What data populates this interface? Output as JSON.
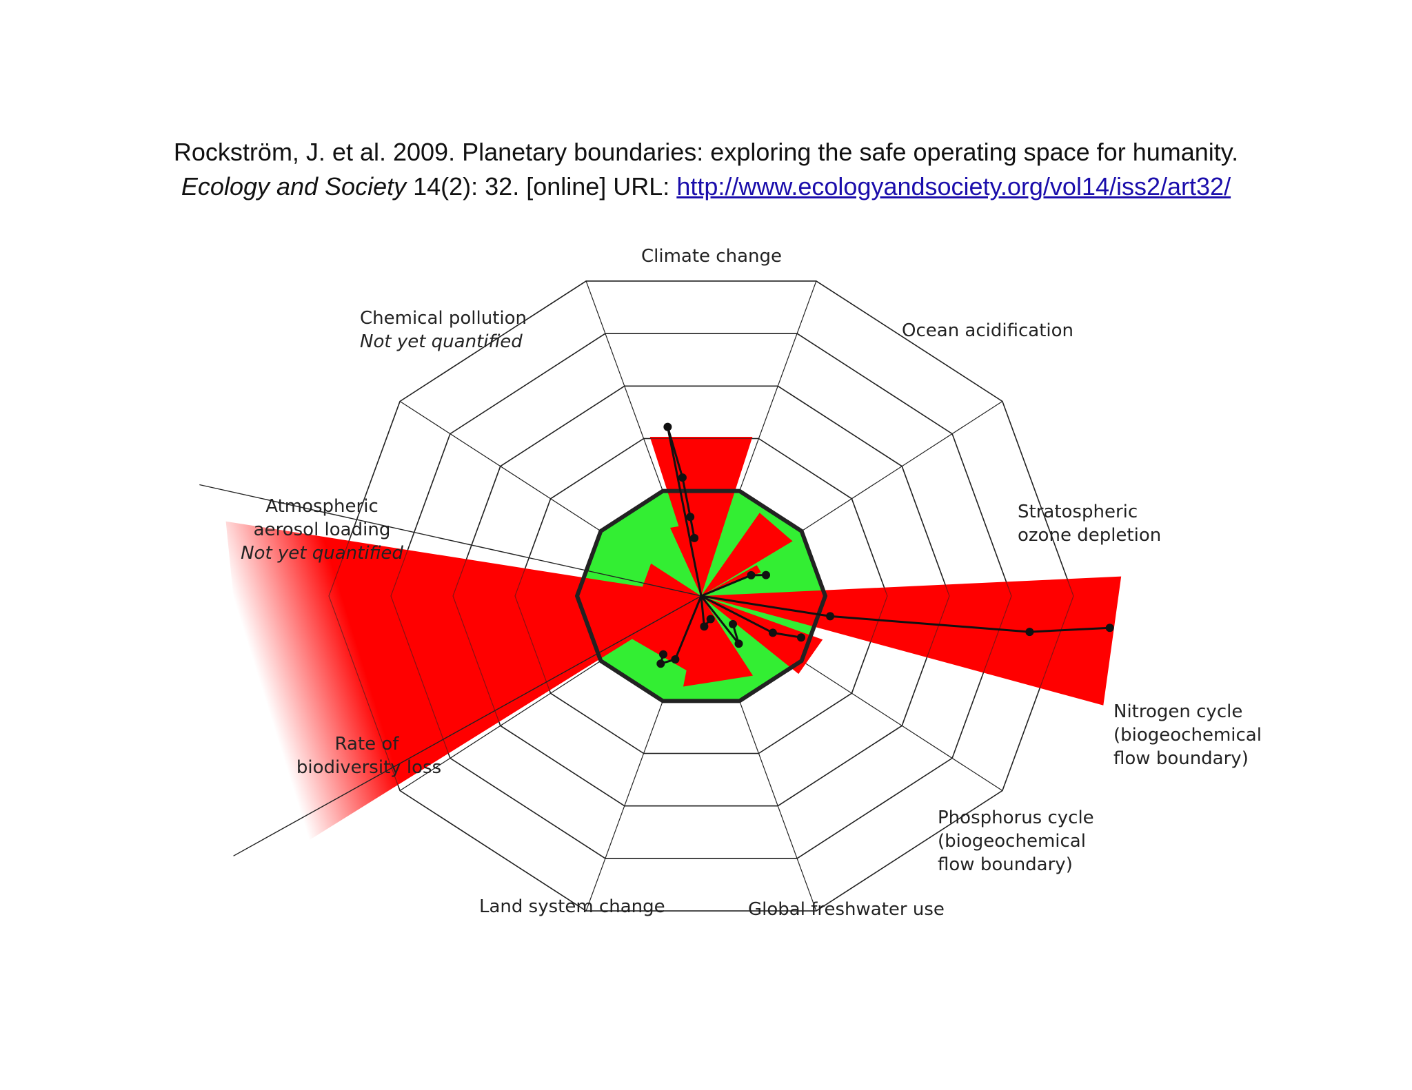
{
  "citation": {
    "line1": "Rockström, J. et al. 2009. Planetary boundaries: exploring the safe operating space for humanity.",
    "journal": "Ecology and Society",
    "line2_rest": " 14(2): 32. [online] URL: ",
    "url": "http://www.ecologyandsociety.org/vol14/iss2/art32/"
  },
  "diagram": {
    "labels": {
      "climate": "Climate change",
      "ocean": "Ocean acidification",
      "ozone_1": "Stratospheric",
      "ozone_2": "ozone depletion",
      "nitrogen_1": "Nitrogen cycle",
      "nitrogen_2": "(biogeochemical",
      "nitrogen_3": "flow boundary)",
      "phosphorus_1": "Phosphorus cycle",
      "phosphorus_2": "(biogeochemical",
      "phosphorus_3": "flow boundary)",
      "freshwater": "Global freshwater use",
      "land": "Land system change",
      "biodiversity_1": "Rate of",
      "biodiversity_2": "biodiversity loss",
      "aerosol_1": "Atmospheric",
      "aerosol_2": "aerosol loading",
      "aerosol_3": "Not yet quantified",
      "chemical_1": "Chemical pollution",
      "chemical_2": "Not yet quantified"
    },
    "colors": {
      "exceeded": "#ff0000",
      "safe": "#33ee33",
      "grid": "#222222",
      "boundary": "#222222"
    }
  }
}
